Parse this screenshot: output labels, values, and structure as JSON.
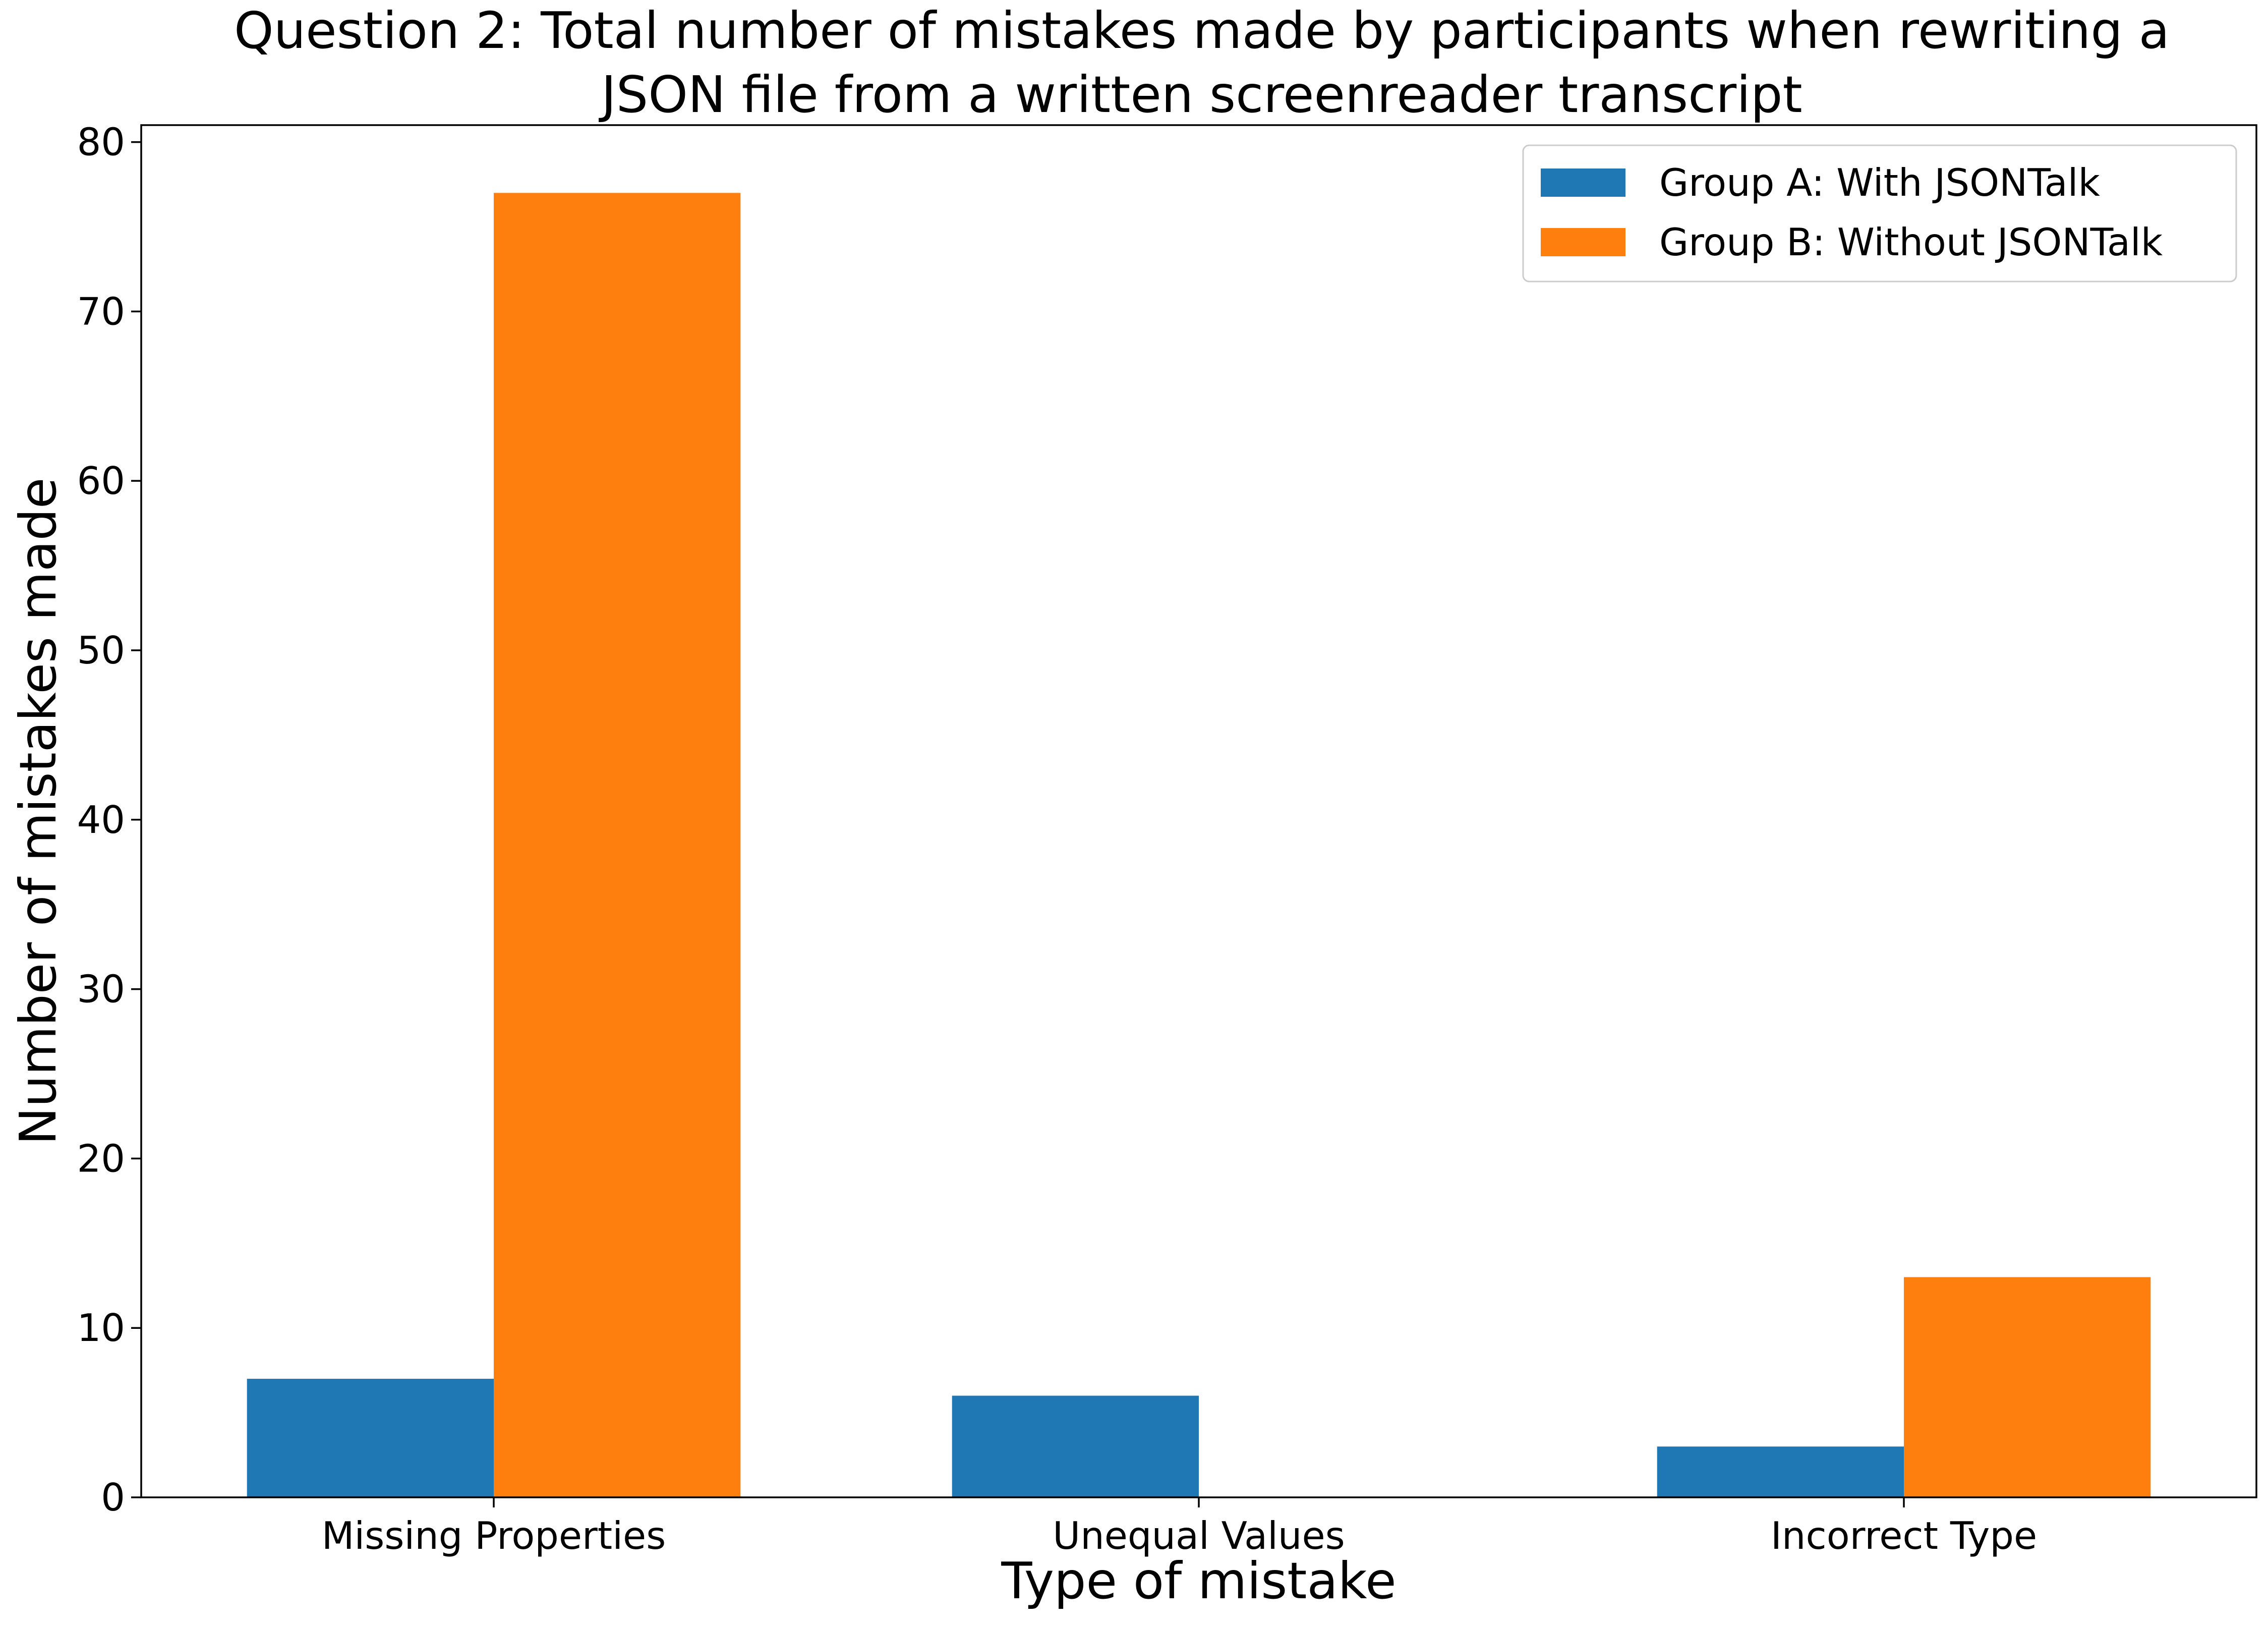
{
  "chart_data": {
    "type": "bar",
    "title": "Question 2: Total number of mistakes made by participants when rewriting a JSON file from a written screenreader transcript",
    "title_lines": [
      "Question 2: Total number of mistakes made by participants when rewriting a",
      "JSON file from a written screenreader transcript"
    ],
    "xlabel": "Type of mistake",
    "ylabel": "Number of mistakes made",
    "categories": [
      "Missing Properties",
      "Unequal Values",
      "Incorrect Type"
    ],
    "series": [
      {
        "name": "Group A: With JSONTalk",
        "values": [
          7,
          6,
          3
        ],
        "color": "#1f77b4"
      },
      {
        "name": "Group B: Without JSONTalk",
        "values": [
          77,
          0,
          13
        ],
        "color": "#ff7f0e"
      }
    ],
    "ylim": [
      0,
      81
    ],
    "yticks": [
      0,
      10,
      20,
      30,
      40,
      50,
      60,
      70,
      80
    ],
    "grid": false,
    "legend_position": "top-right"
  }
}
